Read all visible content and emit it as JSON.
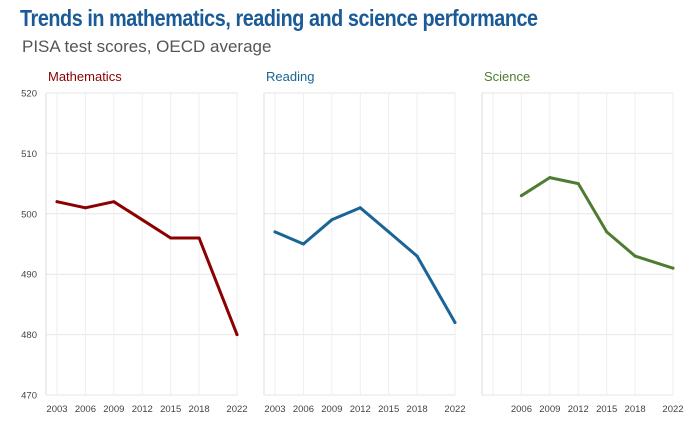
{
  "title": "Trends in mathematics, reading and science performance",
  "subtitle": "PISA test scores, OECD average",
  "chart_data": [
    {
      "type": "line",
      "title": "Mathematics",
      "color": "#8b0000",
      "x": [
        2003,
        2006,
        2009,
        2012,
        2015,
        2018,
        2022
      ],
      "values": [
        502,
        501,
        502,
        499,
        496,
        496,
        480
      ],
      "xticks": [
        "2003",
        "2006",
        "2009",
        "2012",
        "2015",
        "2018",
        "2022"
      ],
      "yticks": [
        "470",
        "480",
        "490",
        "500",
        "510",
        "520"
      ],
      "ylim": [
        470,
        520
      ]
    },
    {
      "type": "line",
      "title": "Reading",
      "color": "#1a6496",
      "x": [
        2003,
        2006,
        2009,
        2012,
        2015,
        2018,
        2022
      ],
      "values": [
        497,
        495,
        499,
        501,
        497,
        493,
        482
      ],
      "xticks": [
        "2003",
        "2006",
        "2009",
        "2012",
        "2015",
        "2018",
        "2022"
      ],
      "ylim": [
        470,
        520
      ]
    },
    {
      "type": "line",
      "title": "Science",
      "color": "#4e7d32",
      "x": [
        2006,
        2009,
        2012,
        2015,
        2018,
        2022
      ],
      "values": [
        503,
        506,
        505,
        497,
        493,
        491
      ],
      "xticks": [
        "2006",
        "2009",
        "2012",
        "2015",
        "2018",
        "2022"
      ],
      "ylim": [
        470,
        520
      ]
    }
  ]
}
